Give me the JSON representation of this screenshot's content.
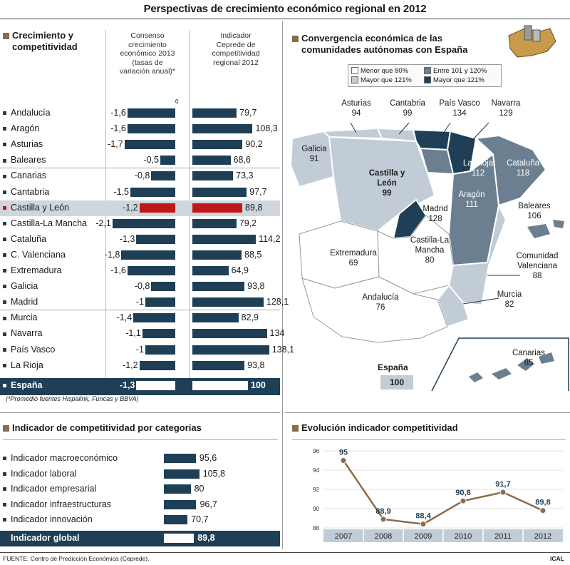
{
  "title": "Perspectivas de crecimiento económico regional en 2012",
  "colors": {
    "navy": "#1e3f55",
    "red": "#c01818",
    "brown": "#8b6b4a",
    "highlight": "#cfd6dd"
  },
  "left_section": {
    "title_line1": "Crecimiento y",
    "title_line2": "competitividad",
    "col1_head": [
      "Consenso",
      "crecimiento",
      "económico 2013",
      "(tasas de",
      "variación anual)*"
    ],
    "col2_head": [
      "Indicador",
      "Ceprede de",
      "competitividad",
      "regional 2012"
    ],
    "zero_mark": "0",
    "footnote": "(*Promedio fuentes Hispalink, Funcas y BBVA)"
  },
  "chart_data": [
    {
      "type": "bar",
      "title": "Crecimiento y competitividad",
      "categories": [
        "Andalucía",
        "Aragón",
        "Asturias",
        "Baleares",
        "Canarias",
        "Cantabria",
        "Castilla y León",
        "Castilla-La Mancha",
        "Cataluña",
        "C. Valenciana",
        "Extremadura",
        "Galicia",
        "Madrid",
        "Murcia",
        "Navarra",
        "País Vasco",
        "La Rioja",
        "España"
      ],
      "series": [
        {
          "name": "Consenso crecimiento económico 2013 (tasas de variación anual)*",
          "values": [
            -1.6,
            -1.6,
            -1.7,
            -0.5,
            -0.8,
            -1.5,
            -1.2,
            -2.1,
            -1.3,
            -1.8,
            -1.6,
            -0.8,
            -1,
            -1.4,
            -1.1,
            -1,
            -1.2,
            -1.3
          ]
        },
        {
          "name": "Indicador Ceprede de competitividad regional 2012",
          "values": [
            79.7,
            108.3,
            90.2,
            68.6,
            73.3,
            97.7,
            89.8,
            79.2,
            114.2,
            88.5,
            64.9,
            93.8,
            128.1,
            82.9,
            134,
            138.1,
            93.8,
            100
          ]
        }
      ],
      "labels_c1": [
        "-1,6",
        "-1,6",
        "-1,7",
        "-0,5",
        "-0,8",
        "-1,5",
        "-1,2",
        "-2,1",
        "-1,3",
        "-1,8",
        "-1,6",
        "-0,8",
        "-1",
        "-1,4",
        "-1,1",
        "-1",
        "-1,2",
        "-1,3"
      ],
      "labels_c2": [
        "79,7",
        "108,3",
        "90,2",
        "68,6",
        "73,3",
        "97,7",
        "89,8",
        "79,2",
        "114,2",
        "88,5",
        "64,9",
        "93,8",
        "128,1",
        "82,9",
        "134",
        "138,1",
        "93,8",
        "100"
      ],
      "highlight": "Castilla y León",
      "total": "España"
    },
    {
      "type": "bar",
      "title": "Indicador de competitividad por categorías",
      "categories": [
        "Indicador macroeconómico",
        "Indicador laboral",
        "Indicador empresarial",
        "Indicador infraestructuras",
        "Indicador innovación",
        "Indicador global"
      ],
      "values": [
        95.6,
        105.8,
        80,
        96.7,
        70.7,
        89.8
      ],
      "labels": [
        "95,6",
        "105,8",
        "80",
        "96,7",
        "70,7",
        "89,8"
      ]
    },
    {
      "type": "line",
      "title": "Evolución indicador competitividad",
      "x": [
        "2007",
        "2008",
        "2009",
        "2010",
        "2011",
        "2012"
      ],
      "values": [
        95,
        88.9,
        88.4,
        90.8,
        91.7,
        89.8
      ],
      "labels": [
        "95",
        "88,9",
        "88,4",
        "90,8",
        "91,7",
        "89,8"
      ],
      "yticks": [
        "96",
        "94",
        "92",
        "90",
        "88"
      ],
      "ylim": [
        88,
        96
      ]
    }
  ],
  "map": {
    "title_line1": "Convergencia económica de las",
    "title_line2": "comunidades autónomas con España",
    "legend": [
      "Menor que 80%",
      "Entre 101 y 120%",
      "Entre 81 y 100%",
      "Mayor que 121%"
    ],
    "regions": [
      {
        "name": "Asturias",
        "value": "94"
      },
      {
        "name": "Cantabria",
        "value": "99"
      },
      {
        "name": "País Vasco",
        "value": "134"
      },
      {
        "name": "Navarra",
        "value": "129"
      },
      {
        "name": "Galicia",
        "value": "91"
      },
      {
        "name": "La Rioja",
        "value": "112"
      },
      {
        "name": "Cataluña",
        "value": "118"
      },
      {
        "name": "Castilla y León",
        "value": "99"
      },
      {
        "name": "Aragón",
        "value": "111"
      },
      {
        "name": "Madrid",
        "value": "128"
      },
      {
        "name": "Baleares",
        "value": "106"
      },
      {
        "name": "Extremadura",
        "value": "69"
      },
      {
        "name": "Castilla-La Mancha",
        "value": "80"
      },
      {
        "name": "Comunidad Valenciana",
        "value": "88"
      },
      {
        "name": "Andalucía",
        "value": "76"
      },
      {
        "name": "Murcia",
        "value": "82"
      },
      {
        "name": "Canarias",
        "value": "85"
      }
    ],
    "espana_label": "España",
    "espana_value": "100"
  },
  "cat_title": "Indicador de competitividad por categorías",
  "evo_title": "Evolución indicador competitividad",
  "source": "FUENTE: Centro de Predicción Económica (Ceprede).",
  "credit": "ICAL"
}
